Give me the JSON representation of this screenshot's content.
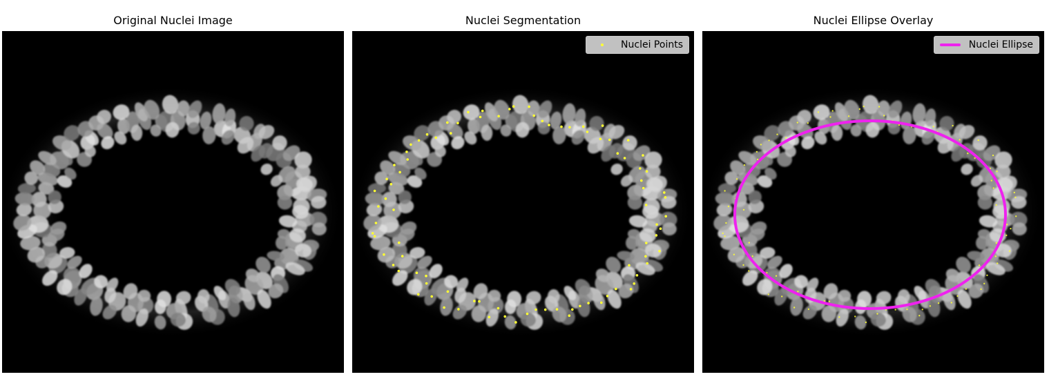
{
  "panels": {
    "original": {
      "title": "Original Nuclei Image"
    },
    "segmentation": {
      "title": "Nuclei Segmentation",
      "legend": "Nuclei Points",
      "point_color": "#ffff33"
    },
    "overlay": {
      "title": "Nuclei Ellipse Overlay",
      "legend": "Nuclei Ellipse",
      "ellipse_color": "#ee22ee"
    }
  }
}
